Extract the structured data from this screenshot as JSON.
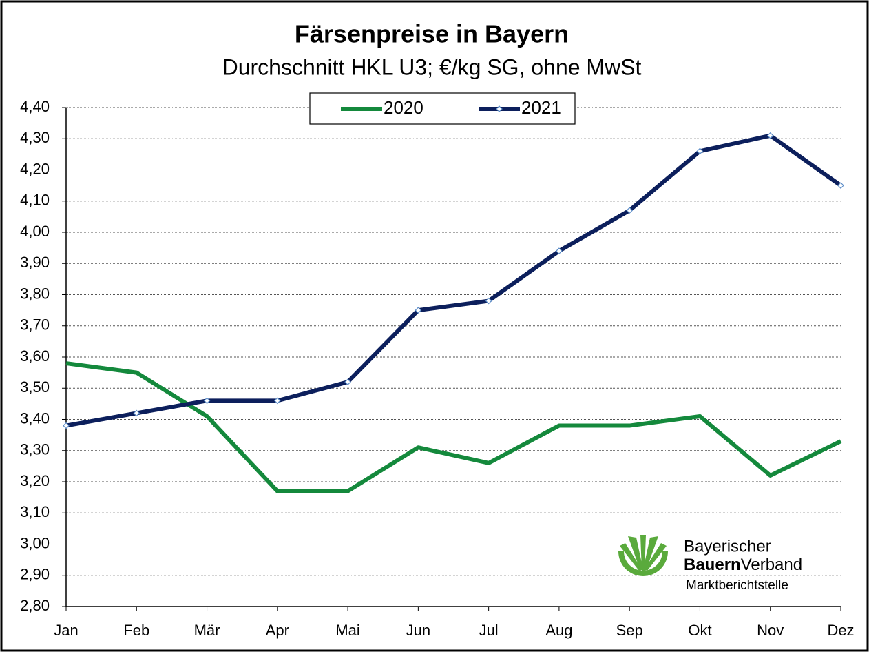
{
  "chart_data": {
    "type": "line",
    "title": "Färsenpreise in Bayern",
    "subtitle": "Durchschnitt HKL U3; €/kg SG, ohne MwSt",
    "categories": [
      "Jan",
      "Feb",
      "Mär",
      "Apr",
      "Mai",
      "Jun",
      "Jul",
      "Aug",
      "Sep",
      "Okt",
      "Nov",
      "Dez"
    ],
    "series": [
      {
        "name": "2020",
        "color": "#14893c",
        "values": [
          3.58,
          3.55,
          3.41,
          3.17,
          3.17,
          3.31,
          3.26,
          3.38,
          3.38,
          3.41,
          3.22,
          3.33
        ]
      },
      {
        "name": "2021",
        "color": "#0c1f5c",
        "marker": "diamond",
        "values": [
          3.38,
          3.42,
          3.46,
          3.46,
          3.52,
          3.75,
          3.78,
          3.94,
          4.07,
          4.26,
          4.31,
          4.15
        ]
      }
    ],
    "ylim": [
      2.8,
      4.4
    ],
    "yticks": [
      {
        "value": 2.8,
        "label": "2,80"
      },
      {
        "value": 2.9,
        "label": "2,90"
      },
      {
        "value": 3.0,
        "label": "3,00"
      },
      {
        "value": 3.1,
        "label": "3,10"
      },
      {
        "value": 3.2,
        "label": "3,20"
      },
      {
        "value": 3.3,
        "label": "3,30"
      },
      {
        "value": 3.4,
        "label": "3,40"
      },
      {
        "value": 3.5,
        "label": "3,50"
      },
      {
        "value": 3.6,
        "label": "3,60"
      },
      {
        "value": 3.7,
        "label": "3,70"
      },
      {
        "value": 3.8,
        "label": "3,80"
      },
      {
        "value": 3.9,
        "label": "3,90"
      },
      {
        "value": 4.0,
        "label": "4,00"
      },
      {
        "value": 4.1,
        "label": "4,10"
      },
      {
        "value": 4.2,
        "label": "4,20"
      },
      {
        "value": 4.3,
        "label": "4,30"
      },
      {
        "value": 4.4,
        "label": "4,40"
      }
    ],
    "grid": true,
    "legend": "top",
    "logo": {
      "line1": "Bayerischer",
      "line2a": "Bauern",
      "line2b": "Verband",
      "line3": "Marktberichtstelle"
    }
  }
}
